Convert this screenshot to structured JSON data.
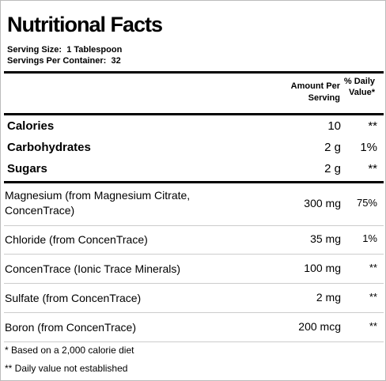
{
  "title": "Nutritional Facts",
  "serving": {
    "size_label": "Serving Size:",
    "size_value": "1 Tablespoon",
    "container_label": "Servings Per Container:",
    "container_value": "32"
  },
  "header": {
    "amount": "Amount Per Serving",
    "daily_value": "% Daily Value*"
  },
  "main_rows": [
    {
      "name": "Calories",
      "amount": "10",
      "dv": "**"
    },
    {
      "name": "Carbohydrates",
      "amount": "2 g",
      "dv": "1%"
    },
    {
      "name": "Sugars",
      "amount": "2 g",
      "dv": "**"
    }
  ],
  "rows": [
    {
      "name": "Magnesium (from Magnesium Citrate, ConcenTrace)",
      "amount": "300 mg",
      "dv": "75%"
    },
    {
      "name": "Chloride (from ConcenTrace)",
      "amount": "35 mg",
      "dv": "1%"
    },
    {
      "name": "ConcenTrace (Ionic Trace Minerals)",
      "amount": "100 mg",
      "dv": "**"
    },
    {
      "name": "Sulfate (from ConcenTrace)",
      "amount": "2 mg",
      "dv": "**"
    },
    {
      "name": "Boron (from ConcenTrace)",
      "amount": "200 mcg",
      "dv": "**"
    }
  ],
  "footnotes": [
    "* Based on a 2,000 calorie diet",
    "** Daily value not established"
  ]
}
